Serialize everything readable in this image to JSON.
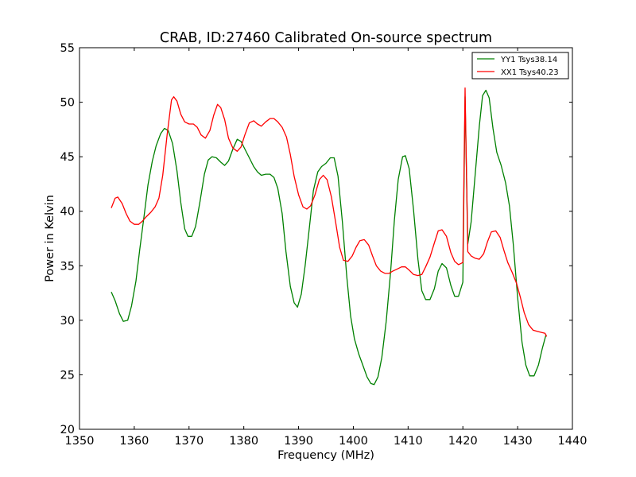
{
  "chart_data": {
    "type": "line",
    "title": "CRAB, ID:27460 Calibrated On-source spectrum",
    "xlabel": "Frequency (MHz)",
    "ylabel": "Power in Kelvin",
    "xlim": [
      1350,
      1440
    ],
    "ylim": [
      20,
      55
    ],
    "xticks": [
      "1350",
      "1360",
      "1370",
      "1380",
      "1390",
      "1400",
      "1410",
      "1420",
      "1430",
      "1440"
    ],
    "yticks": [
      "20",
      "25",
      "30",
      "35",
      "40",
      "45",
      "50",
      "55"
    ],
    "grid": false,
    "legend_position": "top-right",
    "series": [
      {
        "name": "YY1 Tsys38.14",
        "color": "#008000",
        "points": [
          [
            1355.8,
            32.6
          ],
          [
            1356.5,
            31.8
          ],
          [
            1357.3,
            30.6
          ],
          [
            1358.0,
            29.9
          ],
          [
            1358.8,
            30.0
          ],
          [
            1359.5,
            31.3
          ],
          [
            1360.3,
            33.6
          ],
          [
            1361.0,
            36.5
          ],
          [
            1361.8,
            39.6
          ],
          [
            1362.5,
            42.4
          ],
          [
            1363.3,
            44.6
          ],
          [
            1364.0,
            46.0
          ],
          [
            1364.8,
            47.1
          ],
          [
            1365.5,
            47.6
          ],
          [
            1366.2,
            47.4
          ],
          [
            1367.0,
            46.2
          ],
          [
            1367.8,
            43.7
          ],
          [
            1368.5,
            40.8
          ],
          [
            1369.2,
            38.4
          ],
          [
            1369.8,
            37.7
          ],
          [
            1370.5,
            37.7
          ],
          [
            1371.2,
            38.6
          ],
          [
            1372.0,
            40.9
          ],
          [
            1372.8,
            43.4
          ],
          [
            1373.5,
            44.7
          ],
          [
            1374.2,
            45.0
          ],
          [
            1375.0,
            44.9
          ],
          [
            1375.8,
            44.5
          ],
          [
            1376.5,
            44.2
          ],
          [
            1377.2,
            44.6
          ],
          [
            1378.0,
            45.7
          ],
          [
            1378.8,
            46.6
          ],
          [
            1379.5,
            46.4
          ],
          [
            1380.2,
            45.7
          ],
          [
            1381.0,
            44.9
          ],
          [
            1381.8,
            44.1
          ],
          [
            1382.5,
            43.6
          ],
          [
            1383.2,
            43.3
          ],
          [
            1384.0,
            43.4
          ],
          [
            1384.8,
            43.4
          ],
          [
            1385.5,
            43.1
          ],
          [
            1386.2,
            42.1
          ],
          [
            1387.0,
            39.8
          ],
          [
            1387.7,
            36.3
          ],
          [
            1388.5,
            33.1
          ],
          [
            1389.2,
            31.6
          ],
          [
            1389.8,
            31.2
          ],
          [
            1390.5,
            32.4
          ],
          [
            1391.2,
            35.0
          ],
          [
            1392.0,
            38.6
          ],
          [
            1392.7,
            41.9
          ],
          [
            1393.5,
            43.6
          ],
          [
            1394.2,
            44.1
          ],
          [
            1395.0,
            44.4
          ],
          [
            1395.8,
            44.9
          ],
          [
            1396.5,
            44.9
          ],
          [
            1397.2,
            43.2
          ],
          [
            1398.0,
            39.0
          ],
          [
            1398.8,
            34.0
          ],
          [
            1399.5,
            30.4
          ],
          [
            1400.2,
            28.3
          ],
          [
            1401.0,
            26.9
          ],
          [
            1401.8,
            25.8
          ],
          [
            1402.5,
            24.8
          ],
          [
            1403.2,
            24.2
          ],
          [
            1403.8,
            24.1
          ],
          [
            1404.5,
            24.8
          ],
          [
            1405.2,
            26.6
          ],
          [
            1406.0,
            29.9
          ],
          [
            1406.8,
            34.4
          ],
          [
            1407.5,
            39.2
          ],
          [
            1408.2,
            42.9
          ],
          [
            1409.0,
            45.0
          ],
          [
            1409.5,
            45.1
          ],
          [
            1410.2,
            43.9
          ],
          [
            1411.0,
            40.1
          ],
          [
            1411.8,
            35.6
          ],
          [
            1412.5,
            32.7
          ],
          [
            1413.2,
            31.9
          ],
          [
            1414.0,
            31.9
          ],
          [
            1414.8,
            32.9
          ],
          [
            1415.5,
            34.5
          ],
          [
            1416.2,
            35.2
          ],
          [
            1417.0,
            34.8
          ],
          [
            1417.8,
            33.2
          ],
          [
            1418.5,
            32.2
          ],
          [
            1419.2,
            32.2
          ],
          [
            1420.0,
            33.5
          ],
          [
            1420.4,
            50.5
          ],
          [
            1420.9,
            37.0
          ],
          [
            1421.5,
            39.0
          ],
          [
            1422.2,
            43.1
          ],
          [
            1423.0,
            47.8
          ],
          [
            1423.6,
            50.6
          ],
          [
            1424.2,
            51.1
          ],
          [
            1424.8,
            50.4
          ],
          [
            1425.5,
            47.6
          ],
          [
            1426.2,
            45.4
          ],
          [
            1427.0,
            44.2
          ],
          [
            1427.8,
            42.6
          ],
          [
            1428.5,
            40.5
          ],
          [
            1429.2,
            37.0
          ],
          [
            1430.0,
            32.1
          ],
          [
            1430.8,
            28.0
          ],
          [
            1431.5,
            25.9
          ],
          [
            1432.2,
            24.9
          ],
          [
            1433.0,
            24.9
          ],
          [
            1433.8,
            25.9
          ],
          [
            1434.5,
            27.4
          ],
          [
            1435.2,
            28.7
          ]
        ]
      },
      {
        "name": "XX1 Tsys40.23",
        "color": "#ff0000",
        "points": [
          [
            1355.8,
            40.3
          ],
          [
            1356.5,
            41.2
          ],
          [
            1357.0,
            41.3
          ],
          [
            1357.8,
            40.7
          ],
          [
            1358.5,
            39.8
          ],
          [
            1359.2,
            39.1
          ],
          [
            1360.0,
            38.8
          ],
          [
            1360.8,
            38.8
          ],
          [
            1361.5,
            39.1
          ],
          [
            1362.2,
            39.5
          ],
          [
            1363.0,
            39.9
          ],
          [
            1363.8,
            40.4
          ],
          [
            1364.5,
            41.2
          ],
          [
            1365.2,
            43.3
          ],
          [
            1366.0,
            47.0
          ],
          [
            1366.8,
            50.2
          ],
          [
            1367.2,
            50.5
          ],
          [
            1367.8,
            50.1
          ],
          [
            1368.5,
            48.9
          ],
          [
            1369.2,
            48.2
          ],
          [
            1370.0,
            48.0
          ],
          [
            1370.8,
            48.0
          ],
          [
            1371.5,
            47.7
          ],
          [
            1372.2,
            47.0
          ],
          [
            1373.0,
            46.7
          ],
          [
            1373.8,
            47.4
          ],
          [
            1374.5,
            48.8
          ],
          [
            1375.2,
            49.8
          ],
          [
            1375.8,
            49.5
          ],
          [
            1376.5,
            48.4
          ],
          [
            1377.2,
            46.7
          ],
          [
            1378.0,
            45.8
          ],
          [
            1378.8,
            45.5
          ],
          [
            1379.5,
            45.9
          ],
          [
            1380.2,
            47.0
          ],
          [
            1381.0,
            48.1
          ],
          [
            1381.8,
            48.3
          ],
          [
            1382.5,
            48.0
          ],
          [
            1383.2,
            47.8
          ],
          [
            1384.0,
            48.2
          ],
          [
            1384.8,
            48.5
          ],
          [
            1385.5,
            48.5
          ],
          [
            1386.2,
            48.2
          ],
          [
            1387.0,
            47.7
          ],
          [
            1387.8,
            46.8
          ],
          [
            1388.5,
            45.2
          ],
          [
            1389.2,
            43.2
          ],
          [
            1390.0,
            41.5
          ],
          [
            1390.8,
            40.4
          ],
          [
            1391.5,
            40.2
          ],
          [
            1392.2,
            40.5
          ],
          [
            1393.0,
            41.5
          ],
          [
            1393.8,
            42.9
          ],
          [
            1394.5,
            43.3
          ],
          [
            1395.2,
            42.9
          ],
          [
            1396.0,
            41.3
          ],
          [
            1396.8,
            38.9
          ],
          [
            1397.5,
            36.7
          ],
          [
            1398.2,
            35.5
          ],
          [
            1399.0,
            35.4
          ],
          [
            1399.8,
            35.9
          ],
          [
            1400.5,
            36.7
          ],
          [
            1401.2,
            37.3
          ],
          [
            1402.0,
            37.4
          ],
          [
            1402.8,
            36.9
          ],
          [
            1403.5,
            35.9
          ],
          [
            1404.2,
            35.0
          ],
          [
            1405.0,
            34.5
          ],
          [
            1405.8,
            34.3
          ],
          [
            1406.5,
            34.3
          ],
          [
            1407.2,
            34.5
          ],
          [
            1408.0,
            34.7
          ],
          [
            1408.8,
            34.9
          ],
          [
            1409.5,
            34.9
          ],
          [
            1410.2,
            34.6
          ],
          [
            1411.0,
            34.2
          ],
          [
            1411.8,
            34.1
          ],
          [
            1412.5,
            34.2
          ],
          [
            1413.2,
            34.9
          ],
          [
            1414.0,
            35.8
          ],
          [
            1414.8,
            37.1
          ],
          [
            1415.5,
            38.2
          ],
          [
            1416.2,
            38.3
          ],
          [
            1417.0,
            37.7
          ],
          [
            1417.8,
            36.2
          ],
          [
            1418.5,
            35.4
          ],
          [
            1419.2,
            35.1
          ],
          [
            1420.0,
            35.3
          ],
          [
            1420.4,
            51.3
          ],
          [
            1420.9,
            36.3
          ],
          [
            1421.5,
            35.9
          ],
          [
            1422.2,
            35.7
          ],
          [
            1423.0,
            35.6
          ],
          [
            1423.8,
            36.1
          ],
          [
            1424.5,
            37.2
          ],
          [
            1425.2,
            38.1
          ],
          [
            1426.0,
            38.2
          ],
          [
            1426.8,
            37.6
          ],
          [
            1427.5,
            36.4
          ],
          [
            1428.2,
            35.3
          ],
          [
            1429.0,
            34.4
          ],
          [
            1429.8,
            33.4
          ],
          [
            1430.5,
            32.1
          ],
          [
            1431.2,
            30.7
          ],
          [
            1432.0,
            29.6
          ],
          [
            1432.8,
            29.1
          ],
          [
            1433.5,
            29.0
          ],
          [
            1434.2,
            28.9
          ],
          [
            1435.0,
            28.8
          ],
          [
            1435.3,
            28.5
          ]
        ]
      }
    ]
  }
}
